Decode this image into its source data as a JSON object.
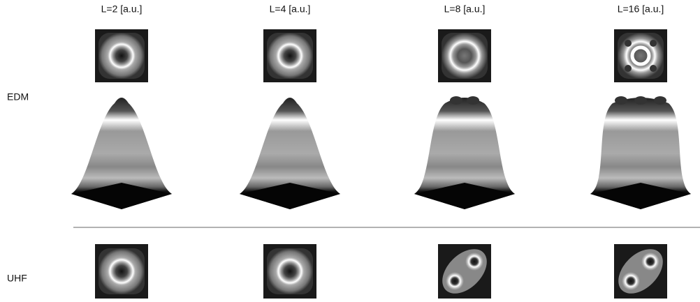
{
  "columns": [
    {
      "label": "L=2 [a.u.]"
    },
    {
      "label": "L=4 [a.u.]"
    },
    {
      "label": "L=8 [a.u.]"
    },
    {
      "label": "L=16 [a.u.]"
    }
  ],
  "rows": [
    {
      "label": "EDM"
    },
    {
      "label": "UHF"
    }
  ]
}
